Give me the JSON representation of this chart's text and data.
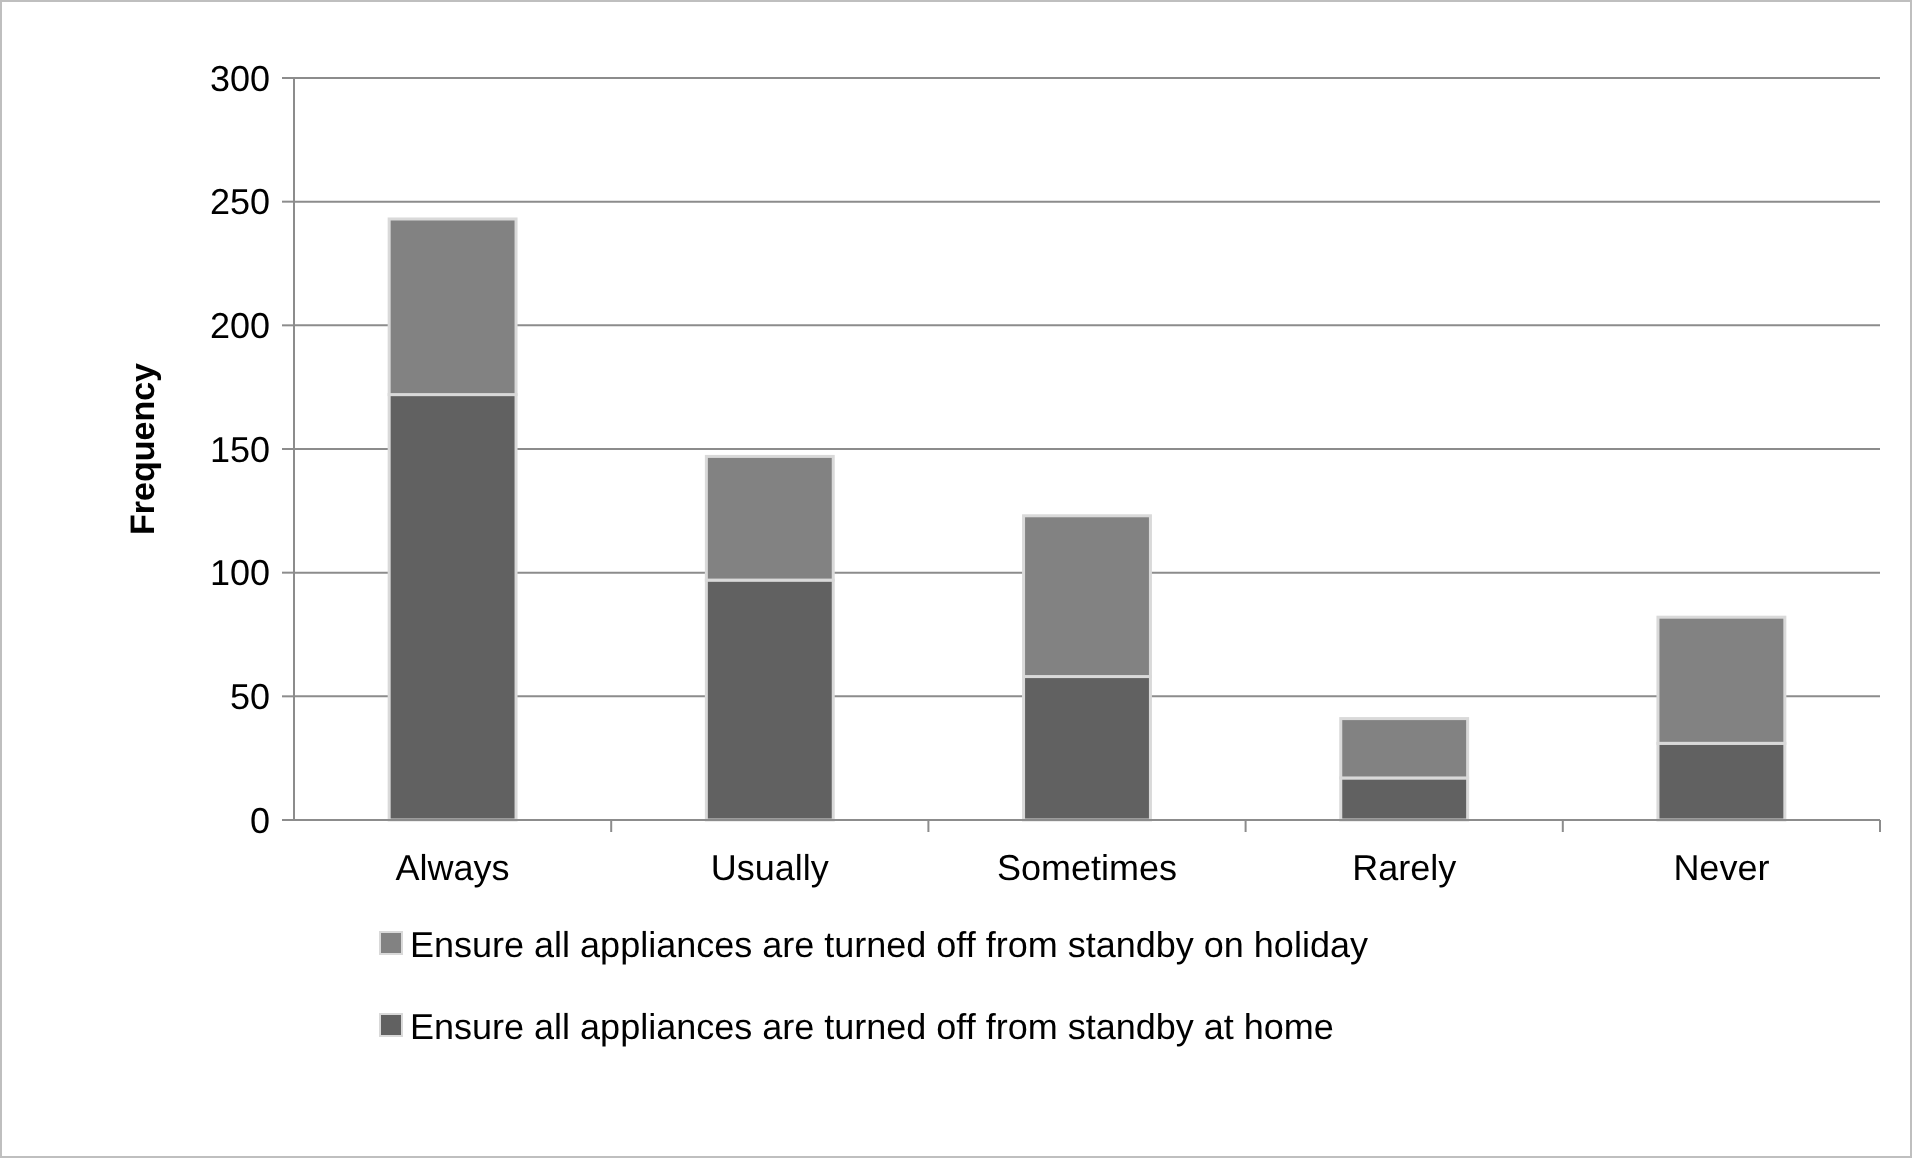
{
  "chart_data": {
    "type": "bar",
    "stacked": true,
    "ylabel": "Frequency",
    "categories": [
      "Always",
      "Usually",
      "Sometimes",
      "Rarely",
      "Never"
    ],
    "series": [
      {
        "name": "Ensure all appliances are turned off from standby at home",
        "color": "#616161",
        "values": [
          172,
          97,
          58,
          17,
          31
        ]
      },
      {
        "name": "Ensure all appliances are turned off from standby on holiday",
        "color": "#828282",
        "values": [
          71,
          50,
          65,
          24,
          51
        ]
      }
    ],
    "ylim": [
      0,
      300
    ],
    "yticks": [
      0,
      50,
      100,
      150,
      200,
      250,
      300
    ],
    "grid": "y",
    "legend": "bottom"
  }
}
